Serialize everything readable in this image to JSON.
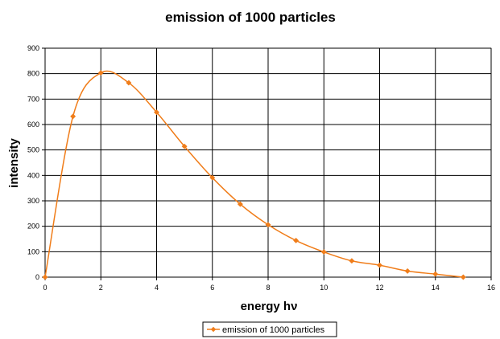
{
  "chart_data": {
    "type": "line",
    "title": "emission of 1000 particles",
    "xlabel": "energy hν",
    "ylabel": "intensity",
    "xlim": [
      0,
      16
    ],
    "ylim": [
      0,
      900
    ],
    "xticks": [
      "0",
      "2",
      "4",
      "6",
      "8",
      "10",
      "12",
      "14",
      "16"
    ],
    "yticks": [
      "0",
      "100",
      "200",
      "300",
      "400",
      "500",
      "600",
      "700",
      "800",
      "900"
    ],
    "grid": true,
    "legend_position": "bottom",
    "series": [
      {
        "name": "emission of 1000 particles",
        "color": "#f07d1a",
        "marker": "diamond",
        "smooth": true,
        "x": [
          0,
          1,
          2,
          3,
          4,
          5,
          6,
          7,
          8,
          9,
          10,
          11,
          12,
          13,
          14,
          15
        ],
        "y": [
          0,
          632,
          803,
          764,
          648,
          514,
          391,
          287,
          206,
          144,
          99,
          64,
          47,
          24,
          12,
          0
        ]
      }
    ]
  }
}
